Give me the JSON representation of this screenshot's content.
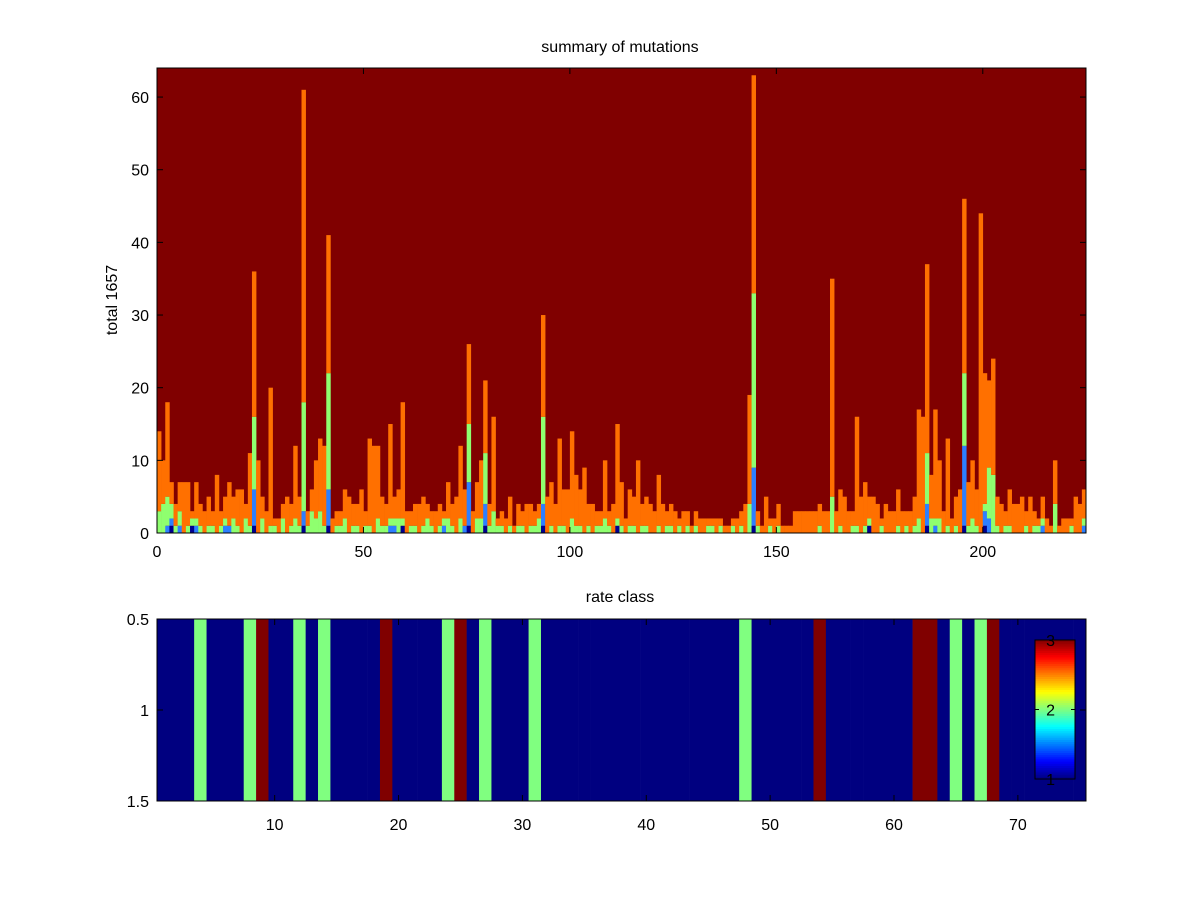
{
  "chart_data": [
    {
      "type": "bar",
      "stacked": true,
      "title": "summary of mutations",
      "ylabel": "total 1657",
      "xlim": [
        0,
        225
      ],
      "ylim": [
        0,
        64
      ],
      "xticks": [
        0,
        50,
        100,
        150,
        200
      ],
      "yticks": [
        0,
        10,
        20,
        30,
        40,
        50,
        60
      ],
      "background_color": "#800000",
      "series_colors": [
        "#00008f",
        "#2d7fff",
        "#8fff6f",
        "#ff7000"
      ],
      "x": [
        0,
        1,
        2,
        3,
        4,
        5,
        6,
        7,
        8,
        9,
        10,
        11,
        12,
        13,
        14,
        15,
        16,
        17,
        18,
        19,
        20,
        21,
        22,
        23,
        24,
        25,
        26,
        27,
        28,
        29,
        30,
        31,
        32,
        33,
        34,
        35,
        36,
        37,
        38,
        39,
        40,
        41,
        42,
        43,
        44,
        45,
        46,
        47,
        48,
        49,
        50,
        51,
        52,
        53,
        54,
        55,
        56,
        57,
        58,
        59,
        60,
        61,
        62,
        63,
        64,
        65,
        66,
        67,
        68,
        69,
        70,
        71,
        72,
        73,
        74,
        75,
        76,
        77,
        78,
        79,
        80,
        81,
        82,
        83,
        84,
        85,
        86,
        87,
        88,
        89,
        90,
        91,
        92,
        93,
        94,
        95,
        96,
        97,
        98,
        99,
        100,
        101,
        102,
        103,
        104,
        105,
        106,
        107,
        108,
        109,
        110,
        111,
        112,
        113,
        114,
        115,
        116,
        117,
        118,
        119,
        120,
        121,
        122,
        123,
        124,
        125,
        126,
        127,
        128,
        129,
        130,
        131,
        132,
        133,
        134,
        135,
        136,
        137,
        138,
        139,
        140,
        141,
        142,
        143,
        144,
        145,
        146,
        147,
        148,
        149,
        150,
        151,
        152,
        153,
        154,
        155,
        156,
        157,
        158,
        159,
        160,
        161,
        162,
        163,
        164,
        165,
        166,
        167,
        168,
        169,
        170,
        171,
        172,
        173,
        174,
        175,
        176,
        177,
        178,
        179,
        180,
        181,
        182,
        183,
        184,
        185,
        186,
        187,
        188,
        189,
        190,
        191,
        192,
        193,
        194,
        195,
        196,
        197,
        198,
        199,
        200,
        201,
        202,
        203,
        204,
        205,
        206,
        207,
        208,
        209,
        210,
        211,
        212,
        213,
        214,
        215,
        216,
        217,
        218,
        219,
        220,
        221,
        222,
        223,
        224
      ],
      "series": [
        {
          "values": [
            0,
            0,
            0,
            1,
            0,
            0,
            0,
            0,
            1,
            0,
            0,
            0,
            0,
            0,
            0,
            0,
            0,
            0,
            0,
            0,
            0,
            0,
            0,
            1,
            0,
            0,
            0,
            0,
            0,
            0,
            0,
            0,
            0,
            0,
            0,
            1,
            0,
            0,
            0,
            0,
            0,
            1,
            0,
            0,
            0,
            0,
            0,
            0,
            0,
            0,
            0,
            0,
            0,
            0,
            0,
            0,
            0,
            0,
            0,
            1,
            0,
            0,
            0,
            0,
            0,
            0,
            0,
            0,
            0,
            0,
            0,
            0,
            0,
            0,
            0,
            1,
            0,
            0,
            0,
            1,
            0,
            0,
            0,
            0,
            0,
            0,
            0,
            0,
            0,
            0,
            0,
            0,
            0,
            1,
            0,
            0,
            0,
            0,
            0,
            0,
            0,
            0,
            0,
            0,
            0,
            0,
            0,
            0,
            0,
            0,
            0,
            1,
            0,
            0,
            0,
            0,
            0,
            0,
            0,
            0,
            0,
            0,
            0,
            0,
            0,
            0,
            0,
            0,
            0,
            0,
            0,
            0,
            0,
            0,
            0,
            0,
            0,
            0,
            0,
            0,
            0,
            0,
            0,
            0,
            1,
            0,
            0,
            0,
            0,
            0,
            0,
            0,
            0,
            0,
            0,
            0,
            0,
            0,
            0,
            0,
            0,
            0,
            0,
            0,
            0,
            0,
            0,
            0,
            0,
            0,
            0,
            0,
            1,
            0,
            0,
            0,
            0,
            0,
            0,
            0,
            0,
            0,
            0,
            0,
            0,
            0,
            1,
            0,
            0,
            0,
            0,
            0,
            0,
            0,
            0,
            1,
            0,
            0,
            0,
            0,
            1,
            0,
            0,
            0,
            0,
            0,
            0,
            0,
            0,
            0,
            0,
            0,
            0,
            0,
            0,
            0,
            0,
            0,
            0,
            0,
            0,
            0,
            0,
            0,
            0
          ]
        },
        {
          "values": [
            0,
            0,
            1,
            1,
            0,
            1,
            0,
            0,
            0,
            1,
            0,
            0,
            0,
            0,
            0,
            0,
            1,
            1,
            0,
            0,
            0,
            0,
            0,
            5,
            0,
            0,
            0,
            0,
            0,
            0,
            0,
            0,
            0,
            0,
            0,
            2,
            0,
            0,
            0,
            0,
            0,
            5,
            0,
            0,
            0,
            0,
            0,
            0,
            0,
            0,
            0,
            0,
            0,
            0,
            0,
            0,
            1,
            1,
            0,
            0,
            0,
            0,
            0,
            0,
            0,
            0,
            0,
            0,
            0,
            1,
            0,
            0,
            0,
            0,
            1,
            6,
            0,
            0,
            0,
            3,
            0,
            0,
            0,
            0,
            0,
            0,
            0,
            0,
            0,
            0,
            0,
            0,
            0,
            3,
            0,
            0,
            0,
            0,
            0,
            0,
            0,
            0,
            0,
            0,
            0,
            0,
            0,
            0,
            0,
            0,
            0,
            0,
            0,
            0,
            0,
            0,
            0,
            0,
            0,
            0,
            0,
            0,
            0,
            0,
            0,
            0,
            0,
            0,
            0,
            0,
            0,
            0,
            0,
            0,
            0,
            0,
            0,
            0,
            0,
            0,
            0,
            0,
            0,
            0,
            8,
            0,
            0,
            0,
            0,
            0,
            0,
            0,
            0,
            0,
            0,
            0,
            0,
            0,
            0,
            0,
            0,
            0,
            0,
            0,
            0,
            0,
            0,
            0,
            0,
            0,
            0,
            0,
            0,
            0,
            0,
            0,
            0,
            0,
            0,
            0,
            0,
            0,
            0,
            0,
            0,
            0,
            3,
            0,
            1,
            0,
            0,
            0,
            0,
            0,
            0,
            11,
            0,
            0,
            0,
            0,
            2,
            2,
            0,
            0,
            0,
            0,
            0,
            0,
            0,
            0,
            0,
            0,
            0,
            0,
            1,
            0,
            0,
            0,
            0,
            0,
            0,
            0,
            0,
            0,
            1
          ]
        },
        {
          "values": [
            3,
            4,
            4,
            2,
            1,
            2,
            0,
            1,
            1,
            1,
            1,
            0,
            1,
            1,
            0,
            1,
            1,
            0,
            2,
            1,
            0,
            2,
            1,
            10,
            0,
            2,
            0,
            1,
            1,
            0,
            2,
            0,
            1,
            2,
            1,
            15,
            1,
            3,
            2,
            3,
            1,
            16,
            0,
            1,
            1,
            2,
            0,
            1,
            1,
            0,
            1,
            1,
            0,
            2,
            1,
            1,
            1,
            1,
            2,
            1,
            0,
            1,
            1,
            0,
            1,
            2,
            1,
            0,
            1,
            1,
            2,
            1,
            0,
            2,
            0,
            8,
            0,
            2,
            2,
            7,
            1,
            3,
            1,
            1,
            0,
            1,
            0,
            1,
            1,
            0,
            1,
            1,
            2,
            12,
            0,
            1,
            0,
            1,
            1,
            0,
            2,
            1,
            1,
            0,
            1,
            0,
            1,
            1,
            2,
            1,
            0,
            1,
            1,
            0,
            1,
            1,
            0,
            1,
            1,
            0,
            0,
            1,
            0,
            1,
            1,
            0,
            1,
            0,
            1,
            0,
            1,
            0,
            0,
            1,
            1,
            0,
            1,
            0,
            0,
            1,
            0,
            1,
            0,
            4,
            24,
            1,
            0,
            0,
            1,
            0,
            1,
            0,
            0,
            0,
            0,
            0,
            0,
            0,
            0,
            0,
            1,
            0,
            0,
            5,
            0,
            1,
            0,
            0,
            1,
            1,
            0,
            1,
            1,
            0,
            0,
            1,
            0,
            0,
            0,
            1,
            0,
            1,
            0,
            1,
            2,
            0,
            7,
            2,
            1,
            2,
            0,
            1,
            0,
            1,
            0,
            10,
            1,
            2,
            1,
            0,
            1,
            7,
            8,
            1,
            0,
            1,
            1,
            0,
            0,
            0,
            1,
            0,
            1,
            1,
            1,
            0,
            0,
            4,
            0,
            0,
            0,
            1,
            0,
            0,
            1
          ]
        },
        {
          "values": [
            11,
            6,
            13,
            3,
            3,
            4,
            7,
            6,
            1,
            5,
            3,
            3,
            4,
            2,
            8,
            2,
            3,
            6,
            3,
            5,
            6,
            2,
            10,
            20,
            10,
            3,
            3,
            19,
            1,
            2,
            2,
            5,
            3,
            10,
            4,
            43,
            2,
            3,
            8,
            10,
            11,
            19,
            2,
            2,
            2,
            4,
            5,
            3,
            3,
            6,
            2,
            12,
            12,
            10,
            4,
            3,
            13,
            3,
            4,
            16,
            3,
            2,
            3,
            4,
            4,
            2,
            2,
            3,
            3,
            1,
            5,
            3,
            5,
            10,
            5,
            11,
            3,
            5,
            8,
            10,
            3,
            13,
            1,
            2,
            2,
            4,
            1,
            3,
            2,
            4,
            3,
            2,
            2,
            14,
            5,
            6,
            4,
            12,
            5,
            6,
            12,
            7,
            5,
            9,
            3,
            4,
            2,
            2,
            8,
            2,
            4,
            13,
            6,
            2,
            5,
            4,
            10,
            3,
            4,
            4,
            3,
            7,
            4,
            2,
            3,
            3,
            1,
            3,
            2,
            1,
            2,
            2,
            2,
            1,
            1,
            2,
            1,
            1,
            1,
            1,
            2,
            2,
            4,
            15,
            30,
            2,
            1,
            5,
            1,
            2,
            3,
            1,
            1,
            1,
            3,
            3,
            3,
            3,
            3,
            3,
            3,
            3,
            3,
            30,
            3,
            5,
            5,
            3,
            2,
            15,
            5,
            6,
            3,
            5,
            4,
            1,
            4,
            3,
            3,
            5,
            3,
            2,
            3,
            4,
            15,
            16,
            26,
            6,
            15,
            8,
            3,
            12,
            2,
            4,
            6,
            24,
            6,
            8,
            5,
            44,
            18,
            12,
            16,
            4,
            4,
            2,
            5,
            4,
            4,
            5,
            2,
            5,
            2,
            1,
            3,
            2,
            1,
            6,
            1,
            2,
            2,
            1,
            5,
            4,
            4
          ]
        }
      ]
    },
    {
      "type": "heatmap",
      "title": "rate class",
      "xlim": [
        0.5,
        75.5
      ],
      "ylim": [
        0.5,
        1.5
      ],
      "xticks": [
        10,
        20,
        30,
        40,
        50,
        60,
        70
      ],
      "yticks": [
        0.5,
        1,
        1.5
      ],
      "ytick_labels": [
        "0.5",
        "1",
        "1.5"
      ],
      "colormap": "jet",
      "color_range": [
        1,
        3
      ],
      "colorbar_ticks": [
        1,
        2,
        3
      ],
      "values": [
        1,
        1,
        1,
        2,
        1,
        1,
        1,
        2,
        3,
        1,
        1,
        2,
        1,
        2,
        1,
        1,
        1,
        1,
        3,
        1,
        1,
        1,
        1,
        2,
        3,
        1,
        2,
        1,
        1,
        1,
        2,
        1,
        1,
        1,
        1,
        1,
        1,
        1,
        1,
        1,
        1,
        1,
        1,
        1,
        1,
        1,
        1,
        2,
        1,
        1,
        1,
        1,
        1,
        3,
        1,
        1,
        1,
        1,
        1,
        1,
        1,
        3,
        3,
        1,
        2,
        1,
        2,
        3,
        1,
        1,
        1,
        1,
        1,
        1,
        1
      ]
    }
  ]
}
